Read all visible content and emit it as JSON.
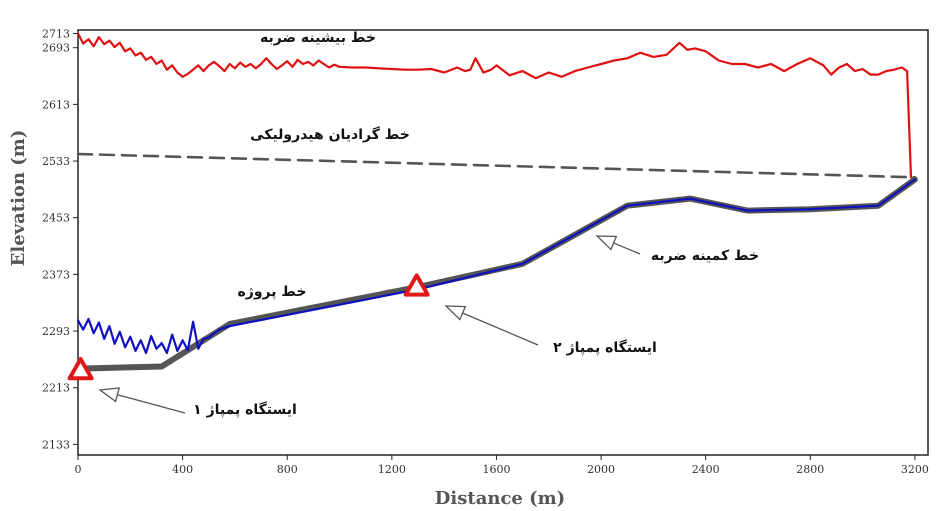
{
  "chart_data": {
    "type": "line",
    "title": "",
    "xlabel": "Distance (m)",
    "ylabel": "Elevation (m)",
    "xlim": [
      0,
      3250
    ],
    "ylim": [
      2118,
      2718
    ],
    "xticks": [
      0,
      400,
      800,
      1200,
      1600,
      2000,
      2400,
      2800,
      3200
    ],
    "yticks": [
      2133,
      2213,
      2293,
      2373,
      2453,
      2533,
      2613,
      2693,
      2713
    ],
    "grid": false,
    "series": [
      {
        "name": "خط بیشینه ضربه",
        "color": "#e01010",
        "style": "solid",
        "x": [
          0,
          20,
          40,
          60,
          80,
          100,
          120,
          140,
          160,
          180,
          200,
          220,
          240,
          260,
          280,
          300,
          320,
          340,
          360,
          380,
          400,
          420,
          440,
          460,
          480,
          500,
          520,
          540,
          560,
          580,
          600,
          620,
          640,
          660,
          680,
          700,
          720,
          740,
          760,
          780,
          800,
          820,
          840,
          860,
          880,
          900,
          920,
          940,
          960,
          980,
          1000,
          1050,
          1100,
          1150,
          1200,
          1250,
          1300,
          1350,
          1400,
          1450,
          1480,
          1500,
          1520,
          1550,
          1580,
          1600,
          1650,
          1700,
          1750,
          1800,
          1850,
          1900,
          1950,
          2000,
          2050,
          2100,
          2150,
          2200,
          2250,
          2300,
          2330,
          2360,
          2400,
          2450,
          2500,
          2550,
          2600,
          2650,
          2700,
          2750,
          2800,
          2850,
          2880,
          2910,
          2940,
          2970,
          3000,
          3030,
          3060,
          3090,
          3120,
          3150,
          3170,
          3185,
          3200
        ],
        "values": [
          2713,
          2699,
          2705,
          2695,
          2708,
          2698,
          2703,
          2694,
          2700,
          2688,
          2692,
          2682,
          2686,
          2676,
          2680,
          2670,
          2675,
          2662,
          2668,
          2658,
          2652,
          2656,
          2662,
          2668,
          2660,
          2668,
          2673,
          2667,
          2660,
          2670,
          2664,
          2672,
          2666,
          2670,
          2664,
          2670,
          2678,
          2670,
          2663,
          2668,
          2674,
          2666,
          2676,
          2670,
          2673,
          2668,
          2675,
          2670,
          2665,
          2669,
          2666,
          2665,
          2665,
          2664,
          2663,
          2662,
          2662,
          2663,
          2658,
          2665,
          2660,
          2662,
          2678,
          2658,
          2662,
          2668,
          2654,
          2660,
          2650,
          2658,
          2652,
          2660,
          2665,
          2670,
          2675,
          2678,
          2686,
          2680,
          2683,
          2700,
          2690,
          2692,
          2688,
          2675,
          2670,
          2670,
          2665,
          2670,
          2660,
          2670,
          2678,
          2668,
          2655,
          2665,
          2670,
          2660,
          2663,
          2655,
          2655,
          2660,
          2662,
          2665,
          2660,
          2510,
          2508
        ]
      },
      {
        "name": "خط گرادیان هیدرولیکی",
        "color": "#555555",
        "style": "dashed",
        "x": [
          0,
          3200
        ],
        "values": [
          2543,
          2510
        ]
      },
      {
        "name": "خط کمینه ضربه",
        "color": "#555555",
        "style": "solid-thick",
        "x": [
          0,
          320,
          580,
          1200,
          1300,
          1700,
          2100,
          2340,
          2560,
          2800,
          3060,
          3200
        ],
        "values": [
          2240,
          2243,
          2303,
          2348,
          2355,
          2388,
          2470,
          2480,
          2463,
          2465,
          2470,
          2507
        ]
      },
      {
        "name": "خط پروژه",
        "color": "#1010c0",
        "style": "solid",
        "x": [
          0,
          20,
          40,
          60,
          80,
          100,
          120,
          140,
          160,
          180,
          200,
          220,
          240,
          260,
          280,
          300,
          320,
          340,
          360,
          380,
          400,
          420,
          440,
          460,
          480,
          500,
          540,
          580,
          1300,
          1700,
          2100,
          2340,
          2560,
          2800,
          3060,
          3200
        ],
        "values": [
          2308,
          2295,
          2310,
          2290,
          2305,
          2282,
          2300,
          2275,
          2292,
          2270,
          2285,
          2265,
          2280,
          2262,
          2286,
          2268,
          2276,
          2262,
          2288,
          2265,
          2280,
          2266,
          2306,
          2268,
          2282,
          2284,
          2295,
          2300,
          2352,
          2388,
          2470,
          2480,
          2463,
          2465,
          2470,
          2507
        ]
      }
    ],
    "annotations": {
      "max_surge": "خط بیشینه ضربه",
      "hgl": "خط گرادیان هیدرولیکی",
      "min_surge": "خط کمینه ضربه",
      "project": "خط پروژه",
      "pump1": "ایستگاه پمپاژ ۱",
      "pump2": "ایستگاه پمپاژ ۲"
    },
    "pump_stations": [
      {
        "label": "ایستگاه پمپاژ ۱",
        "x": 10,
        "y": 2238,
        "color": "#e01818"
      },
      {
        "label": "ایستگاه پمپاژ ۲",
        "x": 1295,
        "y": 2356,
        "color": "#e01818"
      }
    ]
  }
}
